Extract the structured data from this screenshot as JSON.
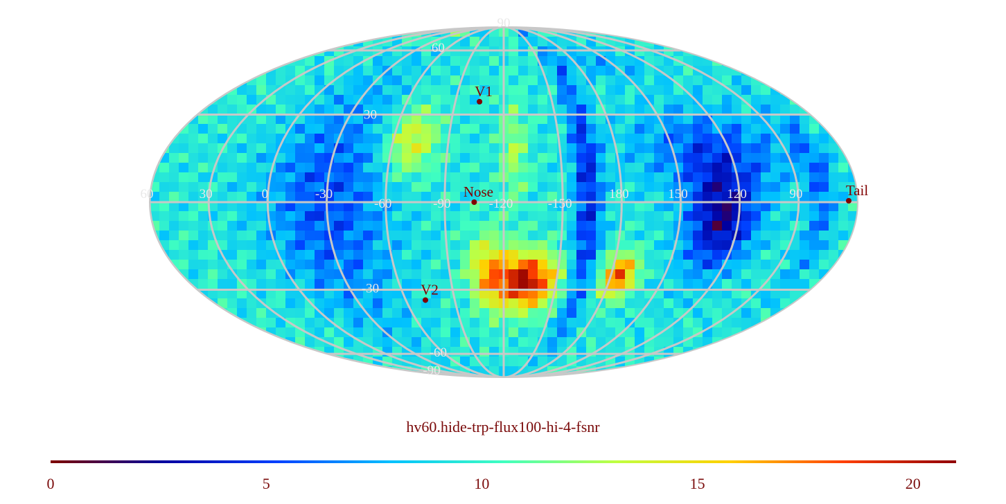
{
  "title": "hv60.hide-trp-flux100-hi-4-fsnr",
  "colorbar": {
    "min": 0,
    "max": 21,
    "ticks": [
      "0",
      "5",
      "10",
      "15",
      "20"
    ],
    "colors": [
      "#7f0000",
      "#0000a0",
      "#0040ff",
      "#00c0ff",
      "#40ffc0",
      "#c0ff40",
      "#ffd000",
      "#ff4000",
      "#900000"
    ]
  },
  "map": {
    "projection": "mollweide",
    "grid_color": "#c8c8c8",
    "marker_color": "#800000",
    "longitude_labels": [
      "60",
      "30",
      "0",
      "-30",
      "-60",
      "-90",
      "-120",
      "-150",
      "180",
      "150",
      "120",
      "90"
    ],
    "latitude_labels": [
      "90",
      "60",
      "30",
      "-30",
      "-60",
      "-90"
    ],
    "markers": [
      {
        "name": "V1",
        "lon": -105,
        "lat": 35
      },
      {
        "name": "Nose",
        "lon": -105,
        "lat": 0
      },
      {
        "name": "V2",
        "lon": -72,
        "lat": -34
      },
      {
        "name": "Tail",
        "lon": 76,
        "lat": 0
      }
    ]
  }
}
